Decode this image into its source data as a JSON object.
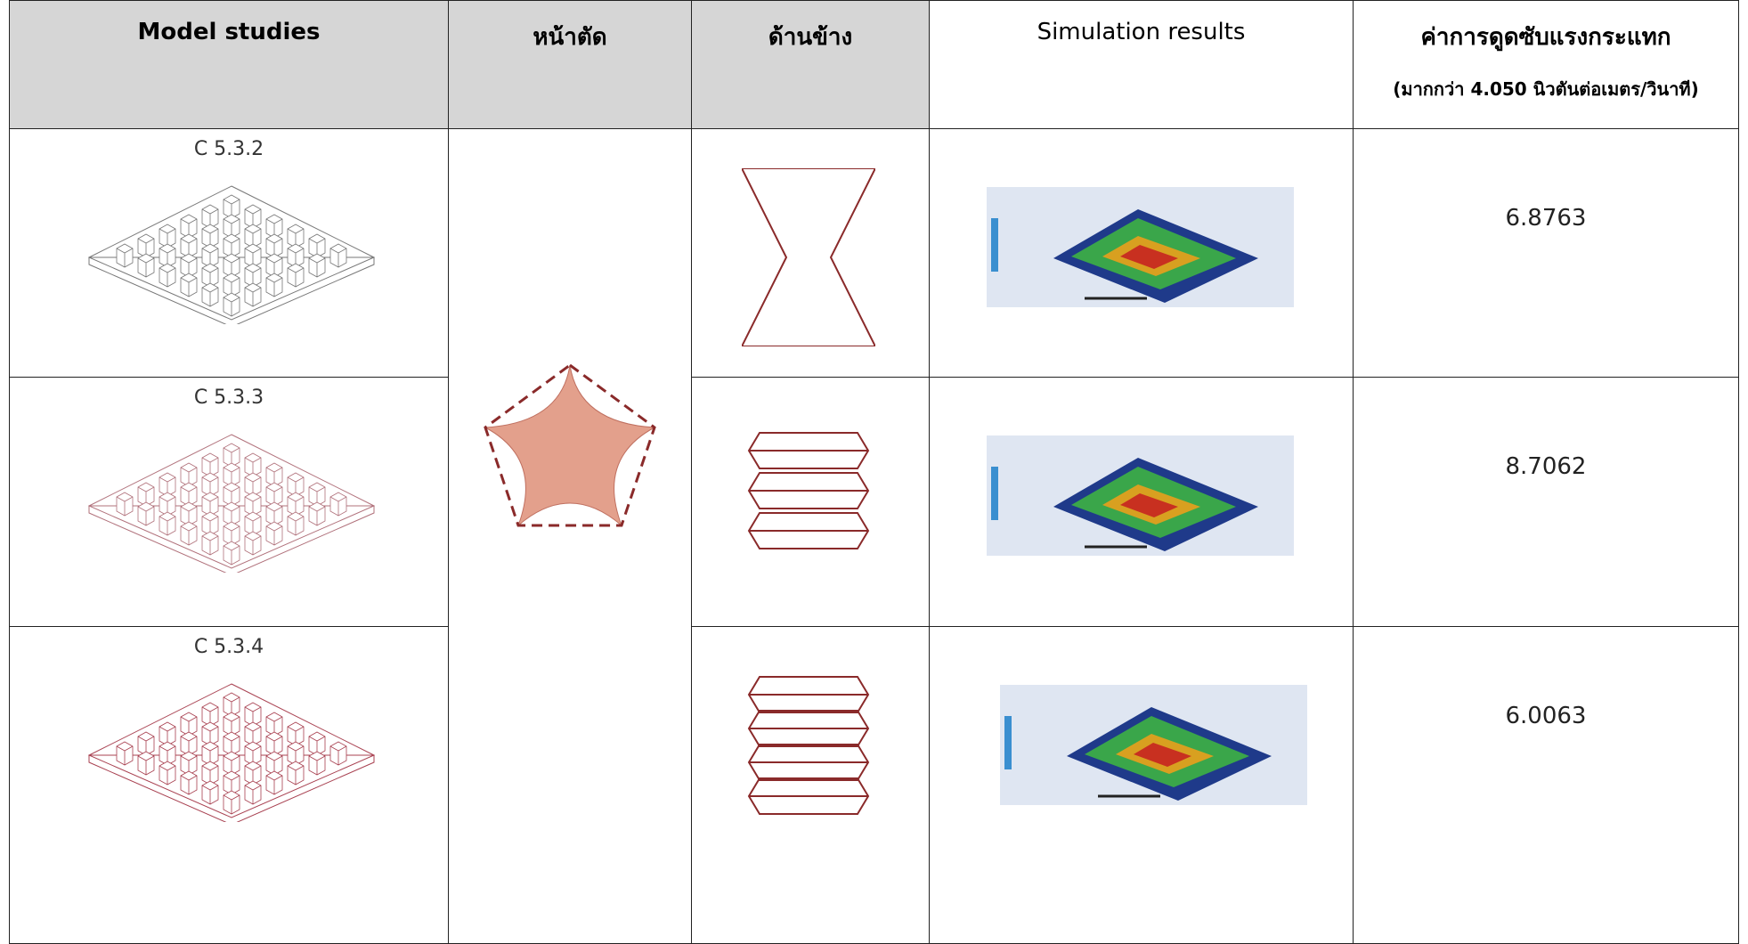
{
  "table": {
    "header": [
      "Model studies",
      "หน้าตัด",
      "ด้านข้าง",
      "Simulation results",
      {
        "title": "ค่าการดูดซับแรงกระแทก",
        "subtitle": "(มากกว่า 4.050 นิวตันต่อเมตร/วินาที)"
      }
    ],
    "rows": [
      {
        "model": "C 5.3.2",
        "value": "6.8763"
      },
      {
        "model": "C 5.3.3",
        "value": "8.7062"
      },
      {
        "model": "C 5.3.4",
        "value": "6.0063"
      }
    ]
  }
}
